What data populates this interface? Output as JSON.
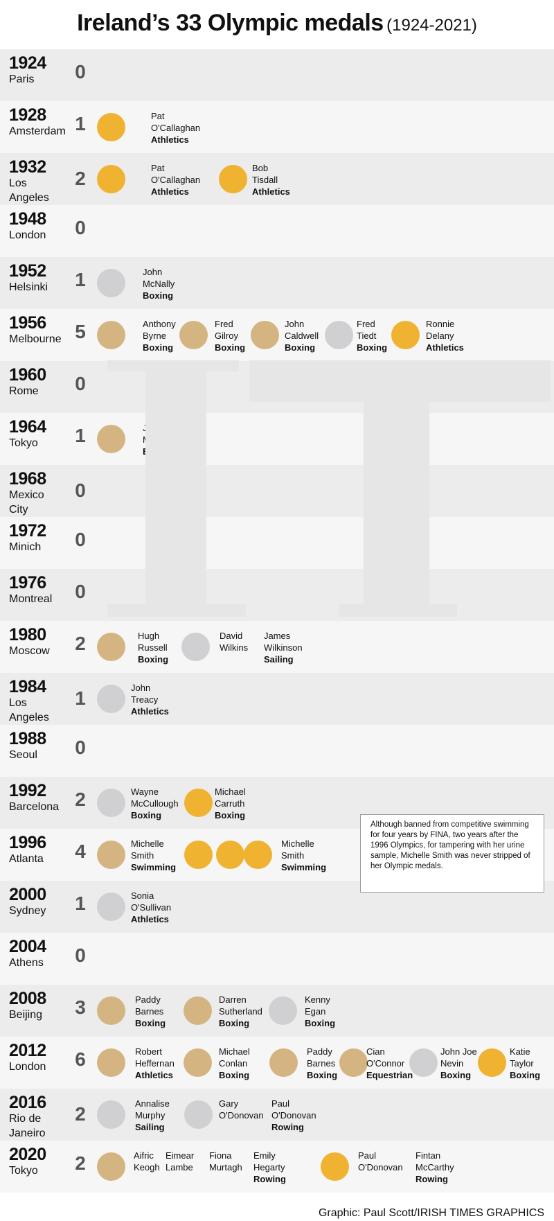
{
  "title": {
    "main": "Ireland’s 33 Olympic medals",
    "sub": "(1924-2021)"
  },
  "chart_data": {
    "type": "table",
    "title": "Ireland’s 33 Olympic medals",
    "subtitle": "(1924-2021)",
    "games": [
      {
        "year": "1924",
        "city": "Paris",
        "count": "0",
        "medals": []
      },
      {
        "year": "1928",
        "city": "Amsterdam",
        "count": "1",
        "medals": [
          {
            "type": "gold",
            "name": [
              "Pat",
              "O'Callaghan"
            ],
            "sport": "Athletics"
          }
        ]
      },
      {
        "year": "1932",
        "city": "Los Angeles",
        "count": "2",
        "medals": [
          {
            "type": "gold",
            "name": [
              "Pat",
              "O'Callaghan"
            ],
            "sport": "Athletics"
          },
          {
            "type": "gold",
            "name": [
              "Bob",
              "Tisdall"
            ],
            "sport": "Athletics"
          }
        ]
      },
      {
        "year": "1948",
        "city": "London",
        "count": "0",
        "medals": []
      },
      {
        "year": "1952",
        "city": "Helsinki",
        "count": "1",
        "medals": [
          {
            "type": "silver",
            "name": [
              "John",
              "McNally"
            ],
            "sport": "Boxing"
          }
        ]
      },
      {
        "year": "1956",
        "city": "Melbourne",
        "count": "5",
        "medals": [
          {
            "type": "bronze",
            "name": [
              "Anthony",
              "Byrne"
            ],
            "sport": "Boxing"
          },
          {
            "type": "bronze",
            "name": [
              "Fred",
              "Gilroy"
            ],
            "sport": "Boxing"
          },
          {
            "type": "bronze",
            "name": [
              "John",
              "Caldwell"
            ],
            "sport": "Boxing"
          },
          {
            "type": "silver",
            "name": [
              "Fred",
              "Tiedt"
            ],
            "sport": "Boxing"
          },
          {
            "type": "gold",
            "name": [
              "Ronnie",
              "Delany"
            ],
            "sport": "Athletics"
          }
        ]
      },
      {
        "year": "1960",
        "city": "Rome",
        "count": "0",
        "medals": []
      },
      {
        "year": "1964",
        "city": "Tokyo",
        "count": "1",
        "medals": [
          {
            "type": "bronze",
            "name": [
              "Jim",
              "McCourt"
            ],
            "sport": "Boxing"
          }
        ]
      },
      {
        "year": "1968",
        "city": "Mexico City",
        "count": "0",
        "medals": []
      },
      {
        "year": "1972",
        "city": "Minich",
        "count": "0",
        "medals": []
      },
      {
        "year": "1976",
        "city": "Montreal",
        "count": "0",
        "medals": []
      },
      {
        "year": "1980",
        "city": "Moscow",
        "count": "2",
        "medals": [
          {
            "type": "bronze",
            "name": [
              "Hugh",
              "Russell"
            ],
            "sport": "Boxing"
          },
          {
            "type": "silver",
            "name": [
              "David",
              "Wilkins"
            ],
            "sport": ""
          },
          {
            "type": "",
            "name": [
              "James",
              "Wilkinson"
            ],
            "sport": "Sailing"
          }
        ]
      },
      {
        "year": "1984",
        "city": "Los Angeles",
        "count": "1",
        "medals": [
          {
            "type": "silver",
            "name": [
              "John",
              "Treacy"
            ],
            "sport": "Athletics"
          }
        ]
      },
      {
        "year": "1988",
        "city": "Seoul",
        "count": "0",
        "medals": []
      },
      {
        "year": "1992",
        "city": "Barcelona",
        "count": "2",
        "medals": [
          {
            "type": "silver",
            "name": [
              "Wayne",
              "McCullough"
            ],
            "sport": "Boxing"
          },
          {
            "type": "gold",
            "name": [
              "Michael",
              "Carruth"
            ],
            "sport": "Boxing"
          }
        ]
      },
      {
        "year": "1996",
        "city": "Atlanta",
        "count": "4",
        "medals": [
          {
            "type": "bronze",
            "name": [
              "Michelle",
              "Smith"
            ],
            "sport": "Swimming"
          },
          {
            "type": "gold",
            "name": [],
            "sport": ""
          },
          {
            "type": "gold",
            "name": [],
            "sport": ""
          },
          {
            "type": "gold",
            "name": [
              "Michelle",
              "Smith"
            ],
            "sport": "Swimming"
          }
        ]
      },
      {
        "year": "2000",
        "city": "Sydney",
        "count": "1",
        "medals": [
          {
            "type": "silver",
            "name": [
              "Sonia",
              "O'Sullivan"
            ],
            "sport": "Athletics"
          }
        ]
      },
      {
        "year": "2004",
        "city": "Athens",
        "count": "0",
        "medals": []
      },
      {
        "year": "2008",
        "city": "Beijing",
        "count": "3",
        "medals": [
          {
            "type": "bronze",
            "name": [
              "Paddy",
              "Barnes"
            ],
            "sport": "Boxing"
          },
          {
            "type": "bronze",
            "name": [
              "Darren",
              "Sutherland"
            ],
            "sport": "Boxing"
          },
          {
            "type": "silver",
            "name": [
              "Kenny",
              "Egan"
            ],
            "sport": "Boxing"
          }
        ]
      },
      {
        "year": "2012",
        "city": "London",
        "count": "6",
        "medals": [
          {
            "type": "bronze",
            "name": [
              "Robert",
              "Heffernan"
            ],
            "sport": "Athletics"
          },
          {
            "type": "bronze",
            "name": [
              "Michael",
              "Conlan"
            ],
            "sport": "Boxing"
          },
          {
            "type": "bronze",
            "name": [
              "Paddy",
              "Barnes"
            ],
            "sport": "Boxing"
          },
          {
            "type": "bronze",
            "name": [
              "Cian",
              "O'Connor"
            ],
            "sport": "Equestrian"
          },
          {
            "type": "silver",
            "name": [
              "John Joe",
              "Nevin"
            ],
            "sport": "Boxing"
          },
          {
            "type": "gold",
            "name": [
              "Katie",
              "Taylor"
            ],
            "sport": "Boxing"
          }
        ]
      },
      {
        "year": "2016",
        "city": "Rio de Janeiro",
        "count": "2",
        "medals": [
          {
            "type": "silver",
            "name": [
              "Annalise",
              "Murphy"
            ],
            "sport": "Sailing"
          },
          {
            "type": "silver",
            "name": [
              "Gary",
              "O'Donovan"
            ],
            "sport": ""
          },
          {
            "type": "",
            "name": [
              "Paul",
              "O'Donovan"
            ],
            "sport": "Rowing"
          }
        ]
      },
      {
        "year": "2020",
        "city": "Tokyo",
        "count": "2",
        "medals": [
          {
            "type": "bronze",
            "name": [
              "Aifric",
              "Keogh"
            ],
            "sport": ""
          },
          {
            "type": "",
            "name": [
              "Eimear",
              "Lambe"
            ],
            "sport": ""
          },
          {
            "type": "",
            "name": [
              "Fiona",
              "Murtagh"
            ],
            "sport": ""
          },
          {
            "type": "",
            "name": [
              "Emily",
              "Hegarty"
            ],
            "sport": "Rowing"
          },
          {
            "type": "gold",
            "name": [
              "Paul",
              "O'Donovan"
            ],
            "sport": ""
          },
          {
            "type": "",
            "name": [
              "Fintan",
              "McCarthy"
            ],
            "sport": "Rowing"
          }
        ]
      }
    ],
    "medal_colors": {
      "gold": "#efb331",
      "silver": "#d0d0d2",
      "bronze": "#d4b582"
    }
  },
  "note": "Although banned from competitive swimming for four years by FINA, two years after the 1996 Olympics, for tampering with her urine sample, Michelle Smith was never stripped of her Olympic medals.",
  "watermark": "IT",
  "credit": "Graphic: Paul Scott/IRISH TIMES GRAPHICS"
}
